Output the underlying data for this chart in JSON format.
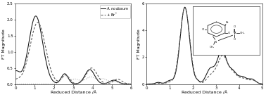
{
  "panel1": {
    "xlabel": "Reduced Distance /Å",
    "ylabel": "FT Magnitude",
    "xlim": [
      0,
      6
    ],
    "ylim": [
      0,
      2.5
    ],
    "yticks": [
      0.0,
      0.5,
      1.0,
      1.5,
      2.0,
      2.5
    ],
    "xticks": [
      0,
      1,
      2,
      3,
      4,
      5,
      6
    ]
  },
  "panel2": {
    "xlabel": "Reduced Distance /Å",
    "ylabel": "FT Magnitude",
    "xlim": [
      0,
      5
    ],
    "ylim": [
      0,
      6
    ],
    "yticks": [
      0,
      2,
      4,
      6
    ],
    "xticks": [
      0,
      1,
      2,
      3,
      4,
      5
    ]
  },
  "line_solid": "#111111",
  "line_dashed": "#555555",
  "line_dotted": "#999999",
  "legend_line1": "italic",
  "legend_line2": "normal"
}
